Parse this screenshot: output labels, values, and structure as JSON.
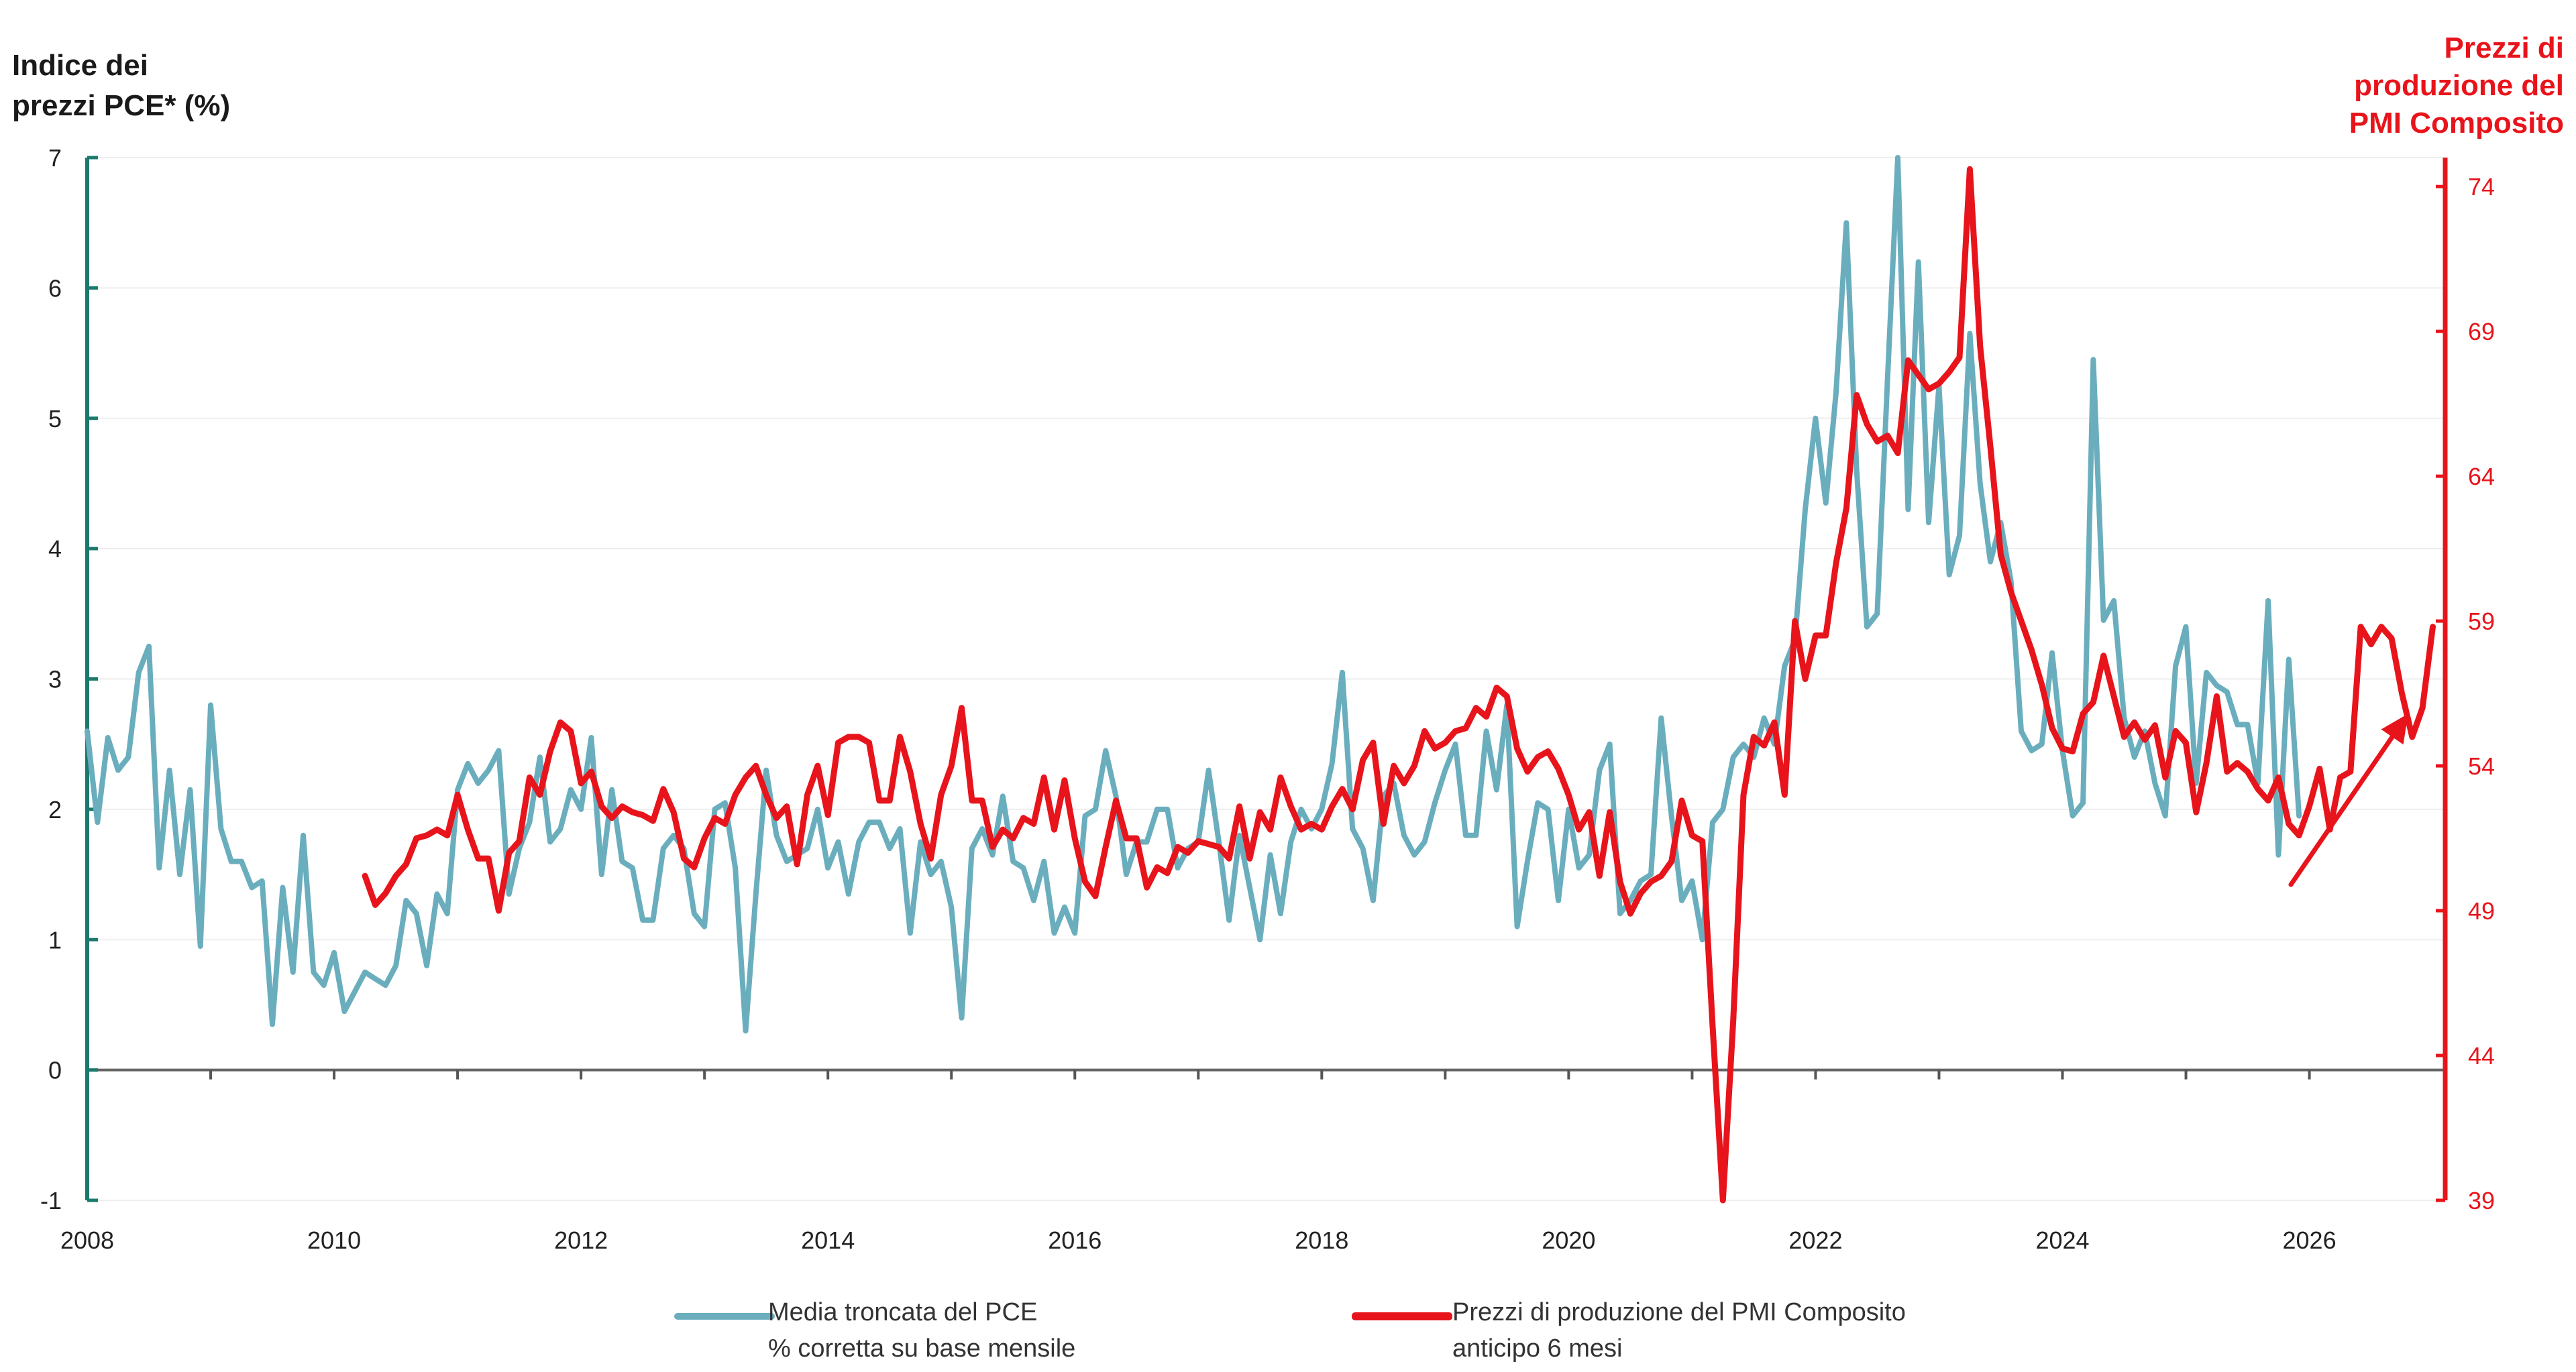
{
  "titles": {
    "left_axis": [
      "Indice dei",
      "prezzi PCE* (%)"
    ],
    "right_axis": [
      "Prezzi di",
      "produzione del",
      "PMI Composito"
    ]
  },
  "colors": {
    "pce": "#6aaebe",
    "pmi": "#e8141b",
    "left_axis": "#1a7a6d",
    "right_axis": "#e8141b",
    "zero_line": "#666666"
  },
  "legend": {
    "pce": [
      "Media troncata del PCE",
      "% corretta su base mensile"
    ],
    "pmi": [
      "Prezzi di produzione del PMI Composito",
      "anticipo 6 mesi"
    ]
  },
  "chart_data": {
    "type": "line",
    "x_ticks": [
      "2008",
      "2010",
      "2012",
      "2014",
      "2016",
      "2018",
      "2020",
      "2022",
      "2024",
      "2026"
    ],
    "x_range": [
      2008.0,
      2027.1
    ],
    "y_left": {
      "range": [
        -1,
        7
      ],
      "ticks": [
        "-1",
        "0",
        "1",
        "2",
        "3",
        "4",
        "5",
        "6",
        "7"
      ]
    },
    "y_right": {
      "range": [
        39,
        75
      ],
      "ticks": [
        "39",
        "44",
        "49",
        "54",
        "59",
        "64",
        "69",
        "74"
      ]
    },
    "grid": "horizontal",
    "series": [
      {
        "name": "Media troncata del PCE % corretta su base mensile",
        "axis": "left",
        "x_start": 2008.0,
        "step": 0.08333,
        "values": [
          2.6,
          1.9,
          2.55,
          2.3,
          2.4,
          3.05,
          3.25,
          1.55,
          2.3,
          1.5,
          2.15,
          0.95,
          2.8,
          1.85,
          1.6,
          1.6,
          1.4,
          1.45,
          0.35,
          1.4,
          0.75,
          1.8,
          0.75,
          0.65,
          0.9,
          0.45,
          0.6,
          0.75,
          0.7,
          0.65,
          0.8,
          1.3,
          1.2,
          0.8,
          1.35,
          1.2,
          2.15,
          2.35,
          2.2,
          2.3,
          2.45,
          1.35,
          1.7,
          1.9,
          2.4,
          1.75,
          1.85,
          2.15,
          2.0,
          2.55,
          1.5,
          2.15,
          1.6,
          1.55,
          1.15,
          1.15,
          1.7,
          1.8,
          1.7,
          1.2,
          1.1,
          2.0,
          2.05,
          1.55,
          0.3,
          1.35,
          2.3,
          1.8,
          1.6,
          1.65,
          1.7,
          2.0,
          1.55,
          1.75,
          1.35,
          1.75,
          1.9,
          1.9,
          1.7,
          1.85,
          1.05,
          1.75,
          1.5,
          1.6,
          1.25,
          0.4,
          1.7,
          1.85,
          1.65,
          2.1,
          1.6,
          1.55,
          1.3,
          1.6,
          1.05,
          1.25,
          1.05,
          1.95,
          2.0,
          2.45,
          2.1,
          1.5,
          1.75,
          1.75,
          2.0,
          2.0,
          1.55,
          1.7,
          1.75,
          2.3,
          1.75,
          1.15,
          1.8,
          1.4,
          1.0,
          1.65,
          1.2,
          1.75,
          2.0,
          1.85,
          2.0,
          2.35,
          3.05,
          1.85,
          1.7,
          1.3,
          2.1,
          2.2,
          1.8,
          1.65,
          1.75,
          2.05,
          2.3,
          2.5,
          1.8,
          1.8,
          2.6,
          2.15,
          2.8,
          1.1,
          1.6,
          2.05,
          2.0,
          1.3,
          2.0,
          1.55,
          1.65,
          2.3,
          2.5,
          1.2,
          1.3,
          1.45,
          1.5,
          2.7,
          1.95,
          1.3,
          1.45,
          1.0,
          1.9,
          2.0,
          2.4,
          2.5,
          2.4,
          2.7,
          2.5,
          3.1,
          3.3,
          4.3,
          5.0,
          4.35,
          5.2,
          6.5,
          4.6,
          3.4,
          3.5,
          5.3,
          7.0,
          4.3,
          6.2,
          4.2,
          5.25,
          3.8,
          4.1,
          5.65,
          4.5,
          3.9,
          4.2,
          3.75,
          2.6,
          2.45,
          2.5,
          3.2,
          2.45,
          1.95,
          2.05,
          5.45,
          3.45,
          3.6,
          2.7,
          2.4,
          2.6,
          2.2,
          1.95,
          3.1,
          3.4,
          2.2,
          3.05,
          2.95,
          2.9,
          2.65,
          2.65,
          2.2,
          3.6,
          1.65,
          3.15,
          1.95
        ]
      },
      {
        "name": "Prezzi di produzione del PMI Composito anticipo 6 mesi",
        "axis": "right",
        "x_start": 2010.25,
        "step": 0.08333,
        "values": [
          50.2,
          49.2,
          49.6,
          50.2,
          50.6,
          51.5,
          51.6,
          51.8,
          51.6,
          53.0,
          51.8,
          50.8,
          50.8,
          49.0,
          51.0,
          51.4,
          53.6,
          53.0,
          54.5,
          55.5,
          55.2,
          53.4,
          53.8,
          52.6,
          52.2,
          52.6,
          52.4,
          52.3,
          52.1,
          53.2,
          52.4,
          50.8,
          50.5,
          51.5,
          52.2,
          52.0,
          53.0,
          53.6,
          54.0,
          53.0,
          52.2,
          52.6,
          50.6,
          53.0,
          54.0,
          52.3,
          54.8,
          55.0,
          55.0,
          54.8,
          52.8,
          52.8,
          55.0,
          53.8,
          52.0,
          50.8,
          53.0,
          54.0,
          56.0,
          52.8,
          52.8,
          51.2,
          51.8,
          51.5,
          52.2,
          52.0,
          53.6,
          51.8,
          53.5,
          51.5,
          50.0,
          49.5,
          51.2,
          52.8,
          51.5,
          51.5,
          49.8,
          50.5,
          50.3,
          51.2,
          51.0,
          51.4,
          51.3,
          51.2,
          50.8,
          52.6,
          50.8,
          52.4,
          51.8,
          53.6,
          52.6,
          51.8,
          52.0,
          51.8,
          52.6,
          53.2,
          52.5,
          54.2,
          54.8,
          52.0,
          54.0,
          53.4,
          54.0,
          55.2,
          54.6,
          54.8,
          55.2,
          55.3,
          56.0,
          55.7,
          56.7,
          56.4,
          54.6,
          53.8,
          54.3,
          54.5,
          53.9,
          53.0,
          51.8,
          52.4,
          50.2,
          52.4,
          50.0,
          48.9,
          49.6,
          50.0,
          50.2,
          50.7,
          52.8,
          51.6,
          51.4,
          45.0,
          39.0,
          45.2,
          53.0,
          55.0,
          54.7,
          55.5,
          53.0,
          59.0,
          57.0,
          58.5,
          58.5,
          61.0,
          62.9,
          66.8,
          65.8,
          65.2,
          65.4,
          64.8,
          68.0,
          67.5,
          67.0,
          67.2,
          67.6,
          68.1,
          74.6,
          68.5,
          65.0,
          61.3,
          60.0,
          59.0,
          58.0,
          56.8,
          55.3,
          54.6,
          54.5,
          55.8,
          56.2,
          57.8,
          56.4,
          55.0,
          55.5,
          54.9,
          55.4,
          53.6,
          55.2,
          54.8,
          52.4,
          54.1,
          56.4,
          53.8,
          54.1,
          53.8,
          53.2,
          52.8,
          53.6,
          52.0,
          51.6,
          52.6,
          53.9,
          51.8,
          53.6,
          53.8,
          58.8,
          58.2,
          58.8,
          58.4,
          56.5,
          55.0,
          56.0,
          58.8
        ]
      }
    ],
    "annotations": [
      {
        "type": "arrow",
        "label": "",
        "from": [
          2025.85,
          49.9
        ],
        "to": [
          2026.8,
          55.8
        ],
        "color": "#e8141b",
        "axis": "right"
      }
    ]
  }
}
